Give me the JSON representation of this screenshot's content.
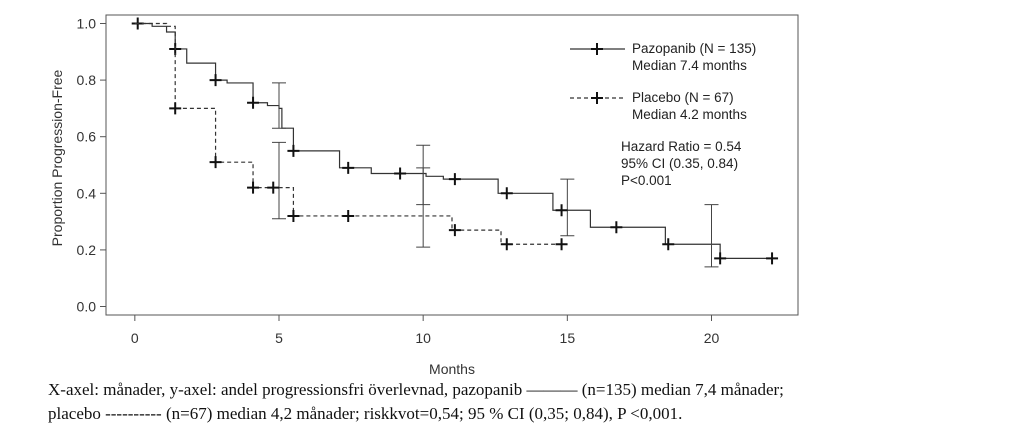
{
  "chart_data": {
    "type": "line",
    "title": "",
    "xlabel": "Months",
    "ylabel": "Proportion Progression-Free",
    "xlim": [
      -1,
      23
    ],
    "ylim": [
      -0.03,
      1.03
    ],
    "xticks": [
      "0",
      "5",
      "10",
      "15",
      "20"
    ],
    "xtick_values": [
      0,
      5,
      10,
      15,
      20
    ],
    "yticks": [
      "0.0",
      "0.2",
      "0.4",
      "0.6",
      "0.8",
      "1.0"
    ],
    "ytick_values": [
      0,
      0.2,
      0.4,
      0.6,
      0.8,
      1.0
    ],
    "grid": false,
    "legend_position": "top-right",
    "series": [
      {
        "name": "Pazopanib (N = 135)",
        "median_label": "Median 7.4 months",
        "line_style": "solid",
        "steps": [
          [
            0,
            1.0
          ],
          [
            0.6,
            0.99
          ],
          [
            1.1,
            0.97
          ],
          [
            1.4,
            0.91
          ],
          [
            1.8,
            0.86
          ],
          [
            2.8,
            0.8
          ],
          [
            3.2,
            0.79
          ],
          [
            4.1,
            0.72
          ],
          [
            4.6,
            0.71
          ],
          [
            5.0,
            0.7
          ],
          [
            5.1,
            0.63
          ],
          [
            5.5,
            0.55
          ],
          [
            7.1,
            0.49
          ],
          [
            8.2,
            0.47
          ],
          [
            10.1,
            0.46
          ],
          [
            10.7,
            0.45
          ],
          [
            12.6,
            0.4
          ],
          [
            14.5,
            0.34
          ],
          [
            15.8,
            0.28
          ],
          [
            18.4,
            0.22
          ],
          [
            20.3,
            0.17
          ],
          [
            22.2,
            0.17
          ]
        ],
        "censor_marks": [
          [
            0.1,
            1.0
          ],
          [
            1.4,
            0.91
          ],
          [
            2.8,
            0.8
          ],
          [
            4.1,
            0.72
          ],
          [
            5.5,
            0.55
          ],
          [
            7.4,
            0.49
          ],
          [
            9.2,
            0.47
          ],
          [
            11.1,
            0.45
          ],
          [
            12.9,
            0.4
          ],
          [
            14.8,
            0.34
          ],
          [
            16.7,
            0.28
          ],
          [
            18.5,
            0.22
          ],
          [
            20.3,
            0.17
          ],
          [
            22.1,
            0.17
          ]
        ],
        "ci_bars": [
          [
            5.0,
            0.63,
            0.79
          ],
          [
            10.0,
            0.36,
            0.57
          ],
          [
            15.0,
            0.25,
            0.45
          ],
          [
            20.0,
            0.14,
            0.36
          ]
        ]
      },
      {
        "name": "Placebo (N = 67)",
        "median_label": "Median 4.2 months",
        "line_style": "dashed",
        "steps": [
          [
            0,
            1.0
          ],
          [
            1.1,
            0.99
          ],
          [
            1.4,
            0.7
          ],
          [
            2.8,
            0.51
          ],
          [
            4.1,
            0.42
          ],
          [
            5.5,
            0.32
          ],
          [
            11.0,
            0.27
          ],
          [
            12.7,
            0.22
          ],
          [
            14.9,
            0.22
          ]
        ],
        "censor_marks": [
          [
            1.4,
            0.7
          ],
          [
            2.8,
            0.51
          ],
          [
            4.1,
            0.42
          ],
          [
            4.8,
            0.42
          ],
          [
            5.5,
            0.32
          ],
          [
            7.4,
            0.32
          ],
          [
            11.1,
            0.27
          ],
          [
            12.9,
            0.22
          ],
          [
            14.8,
            0.22
          ]
        ],
        "ci_bars": [
          [
            5.0,
            0.31,
            0.58
          ],
          [
            10.0,
            0.21,
            0.49
          ]
        ]
      }
    ],
    "annotations": [
      "Hazard Ratio = 0.54",
      "95% CI (0.35, 0.84)",
      "P<0.001"
    ]
  },
  "caption": {
    "line1": "X-axel: månader, y-axel: andel progressionsfri överlevnad, pazopanib ——— (n=135) median 7,4 månader;",
    "line2": "placebo ---------- (n=67) median 4,2 månader; riskkvot=0,54; 95 % CI (0,35; 0,84), P <0,001."
  }
}
